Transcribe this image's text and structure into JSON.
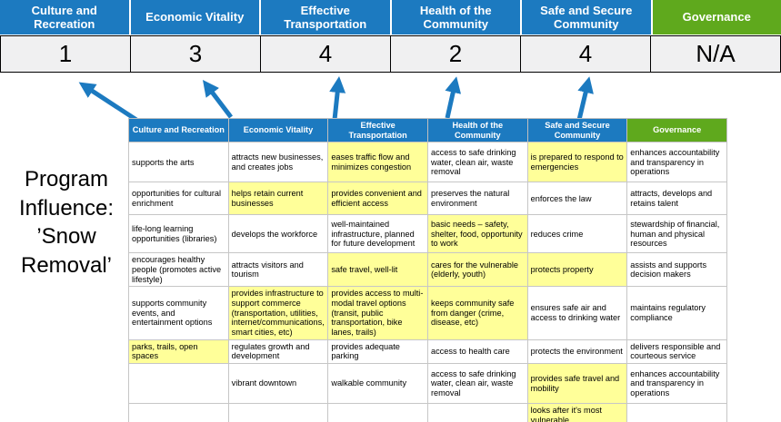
{
  "title": "Program Influence: ’Snow Removal’",
  "colors": {
    "category_blue": "#1c7ac0",
    "governance_green": "#5fa91d",
    "highlight_yellow": "#ffff99",
    "arrow_blue": "#1c7ac0",
    "score_strip_bg": "#f0f0f1"
  },
  "categories": [
    {
      "label": "Culture and Recreation",
      "score": "1",
      "color": "#1c7ac0"
    },
    {
      "label": "Economic Vitality",
      "score": "3",
      "color": "#1c7ac0"
    },
    {
      "label": "Effective Transportation",
      "score": "4",
      "color": "#1c7ac0"
    },
    {
      "label": "Health of the Community",
      "score": "2",
      "color": "#1c7ac0"
    },
    {
      "label": "Safe and Secure Community",
      "score": "4",
      "color": "#1c7ac0"
    },
    {
      "label": "Governance",
      "score": "N/A",
      "color": "#5fa91d"
    }
  ],
  "table": {
    "rows": [
      [
        {
          "text": "supports the arts",
          "highlight": false
        },
        {
          "text": "attracts new businesses, and creates jobs",
          "highlight": false
        },
        {
          "text": "eases traffic flow and minimizes congestion",
          "highlight": true
        },
        {
          "text": "access to safe drinking water, clean air, waste removal",
          "highlight": false
        },
        {
          "text": "is prepared to respond to emergencies",
          "highlight": true
        },
        {
          "text": "enhances accountability and transparency in operations",
          "highlight": false
        }
      ],
      [
        {
          "text": "opportunities for cultural enrichment",
          "highlight": false
        },
        {
          "text": "helps retain current businesses",
          "highlight": true
        },
        {
          "text": "provides convenient and efficient access",
          "highlight": true
        },
        {
          "text": "preserves the natural environment",
          "highlight": false
        },
        {
          "text": "enforces the law",
          "highlight": false
        },
        {
          "text": "attracts, develops and retains talent",
          "highlight": false
        }
      ],
      [
        {
          "text": "life-long learning opportunities (libraries)",
          "highlight": false
        },
        {
          "text": "develops the workforce",
          "highlight": false
        },
        {
          "text": "well-maintained infrastructure, planned for future development",
          "highlight": false
        },
        {
          "text": "basic needs – safety, shelter, food, opportunity to work",
          "highlight": true
        },
        {
          "text": "reduces crime",
          "highlight": false
        },
        {
          "text": "stewardship of financial, human and physical resources",
          "highlight": false
        }
      ],
      [
        {
          "text": "encourages healthy people (promotes active lifestyle)",
          "highlight": false
        },
        {
          "text": "attracts visitors and tourism",
          "highlight": false
        },
        {
          "text": "safe travel, well-lit",
          "highlight": true
        },
        {
          "text": "cares for the vulnerable (elderly, youth)",
          "highlight": true
        },
        {
          "text": "protects property",
          "highlight": true
        },
        {
          "text": "assists and supports decision makers",
          "highlight": false
        }
      ],
      [
        {
          "text": "supports community events, and entertainment options",
          "highlight": false
        },
        {
          "text": "provides infrastructure to support commerce (transportation, utilities, internet/communications, smart cities, etc)",
          "highlight": true
        },
        {
          "text": "provides access to multi-modal travel options (transit, public transportation, bike lanes, trails)",
          "highlight": true
        },
        {
          "text": "keeps community safe from danger (crime, disease, etc)",
          "highlight": true
        },
        {
          "text": "ensures safe air and access to drinking water",
          "highlight": false
        },
        {
          "text": "maintains regulatory compliance",
          "highlight": false
        }
      ],
      [
        {
          "text": "parks, trails, open spaces",
          "highlight": true
        },
        {
          "text": "regulates growth and development",
          "highlight": false
        },
        {
          "text": "provides adequate parking",
          "highlight": false
        },
        {
          "text": "access to health care",
          "highlight": false
        },
        {
          "text": "protects the environment",
          "highlight": false
        },
        {
          "text": "delivers responsible and courteous service",
          "highlight": false
        }
      ],
      [
        {
          "text": "",
          "highlight": false
        },
        {
          "text": "vibrant downtown",
          "highlight": false
        },
        {
          "text": "walkable community",
          "highlight": false
        },
        {
          "text": "access to safe drinking water, clean air, waste removal",
          "highlight": false
        },
        {
          "text": "provides safe travel and mobility",
          "highlight": true
        },
        {
          "text": "enhances accountability and transparency in operations",
          "highlight": false
        }
      ],
      [
        {
          "text": "",
          "highlight": false
        },
        {
          "text": "",
          "highlight": false
        },
        {
          "text": "",
          "highlight": false
        },
        {
          "text": "",
          "highlight": false
        },
        {
          "text": "looks after it's most vulnerable",
          "highlight": true
        },
        {
          "text": "",
          "highlight": false
        }
      ]
    ]
  }
}
